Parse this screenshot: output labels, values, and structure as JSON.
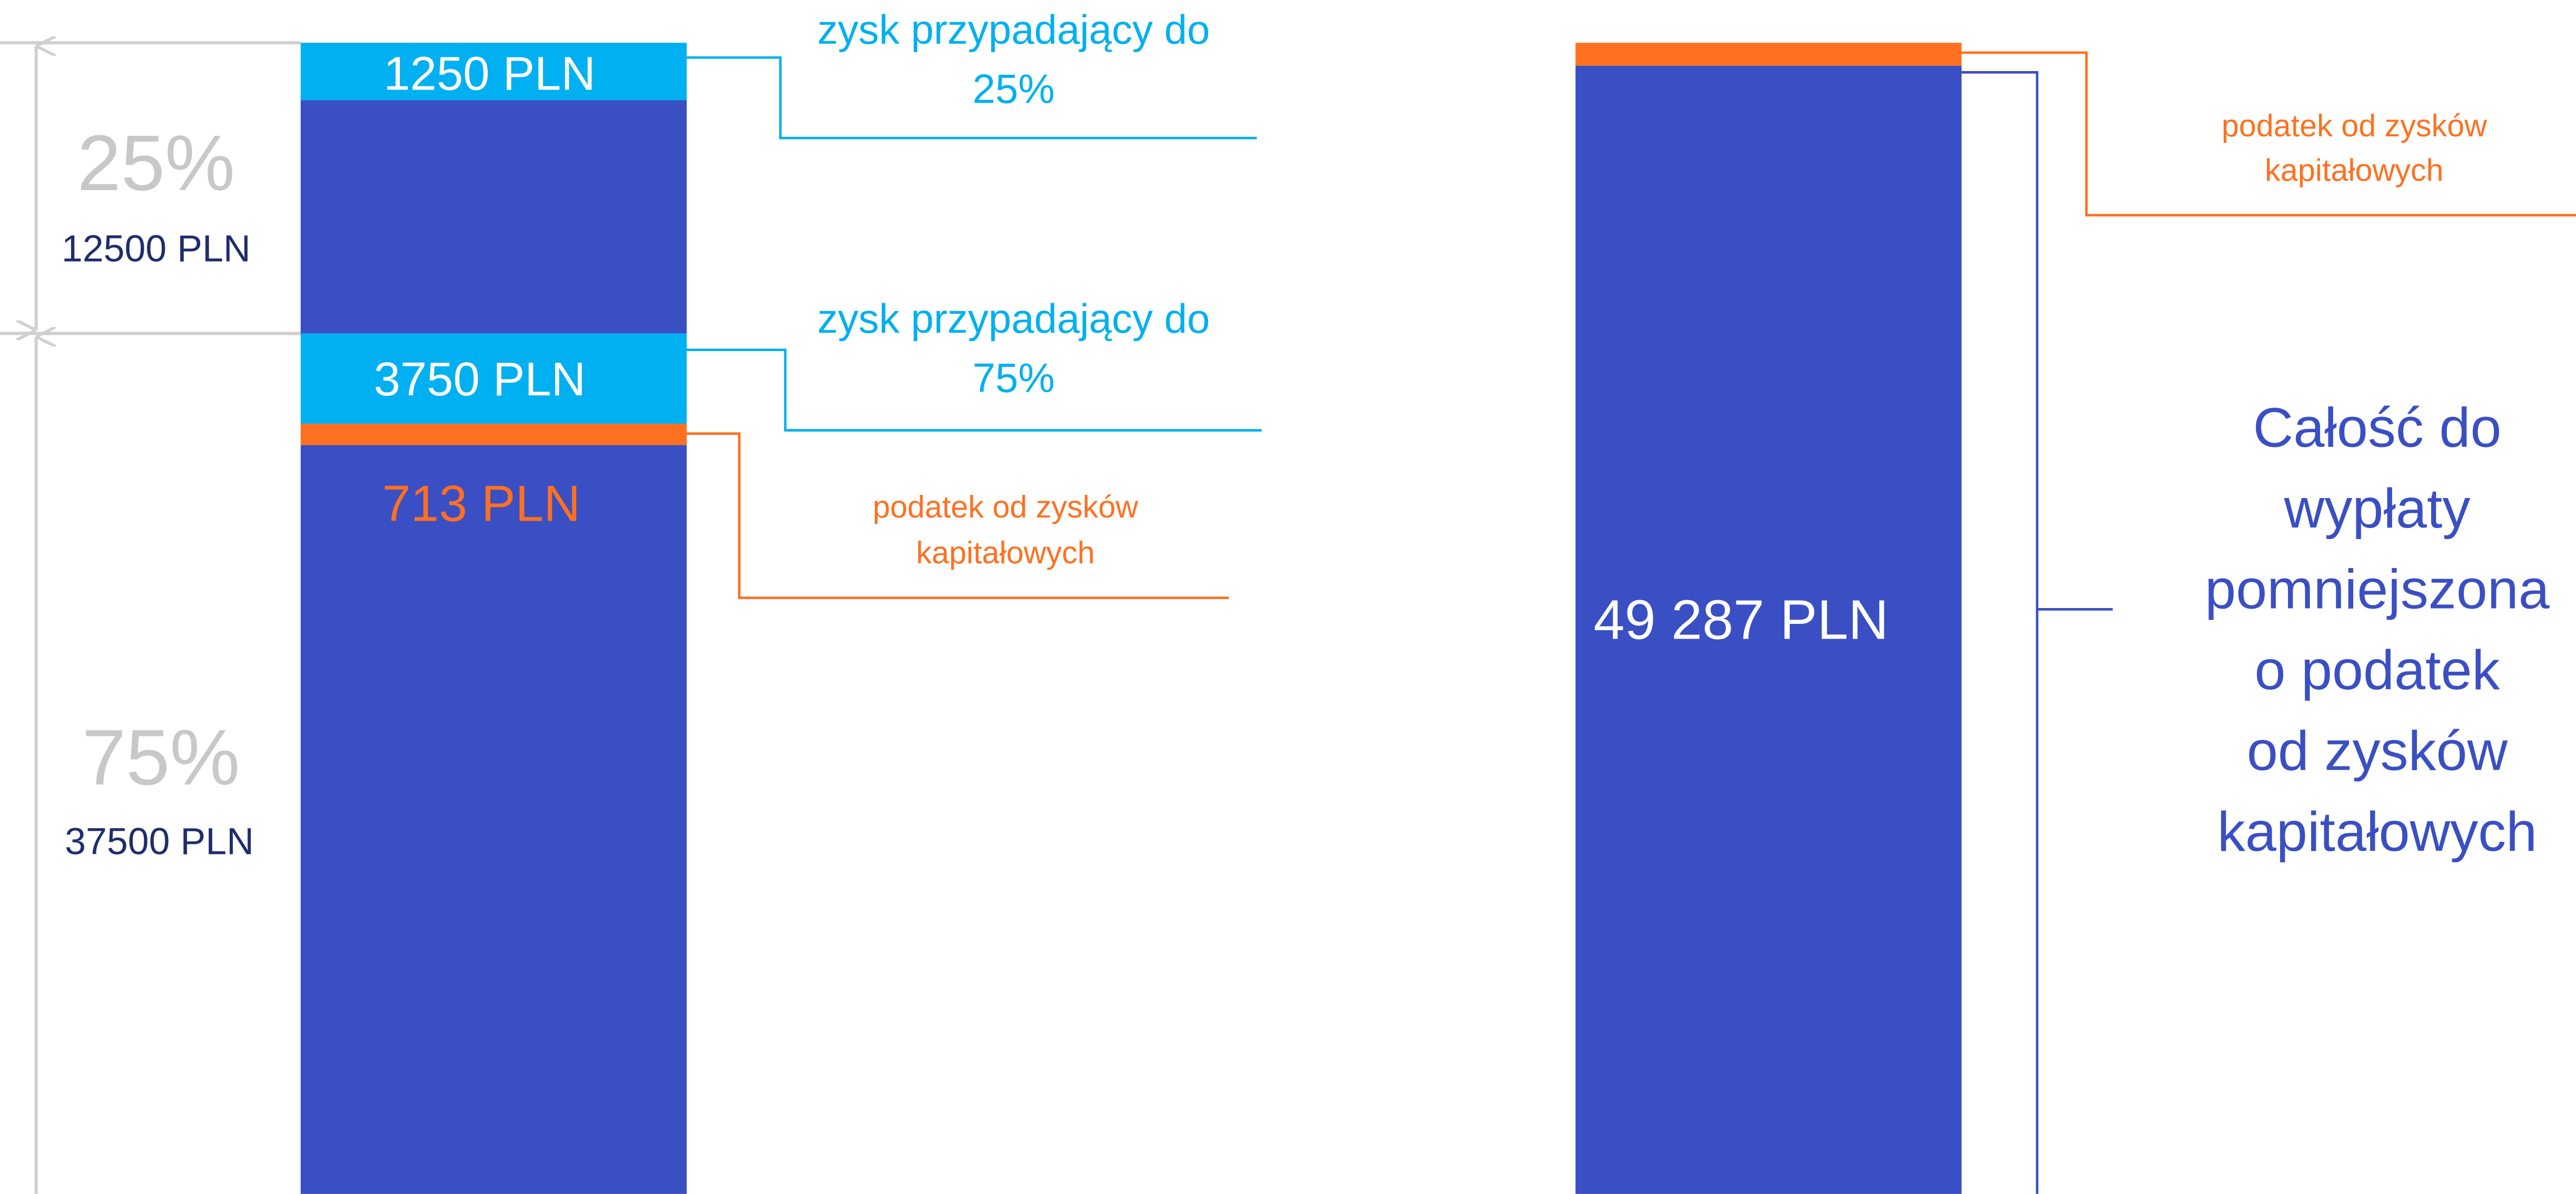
{
  "left": {
    "share_top": "25%",
    "amount_top": "12500 PLN",
    "share_bottom": "75%",
    "amount_bottom": "37500 PLN",
    "bar_labels": {
      "profit_top": "1250 PLN",
      "profit_bottom": "3750 PLN",
      "tax": "713 PLN"
    },
    "callouts": {
      "profit_top": [
        "zysk przypadający do",
        "25%"
      ],
      "profit_bottom": [
        "zysk przypadający do",
        "75%"
      ],
      "tax": [
        "podatek od zysków",
        "kapitałowych"
      ]
    }
  },
  "right": {
    "bar_label": "49 287 PLN",
    "callouts": {
      "tax": [
        "podatek od zysków",
        "kapitałowych"
      ],
      "total": [
        "Całość do",
        "wypłaty",
        "pomniejszona",
        "o podatek",
        "od zysków",
        "kapitałowych"
      ]
    }
  }
}
